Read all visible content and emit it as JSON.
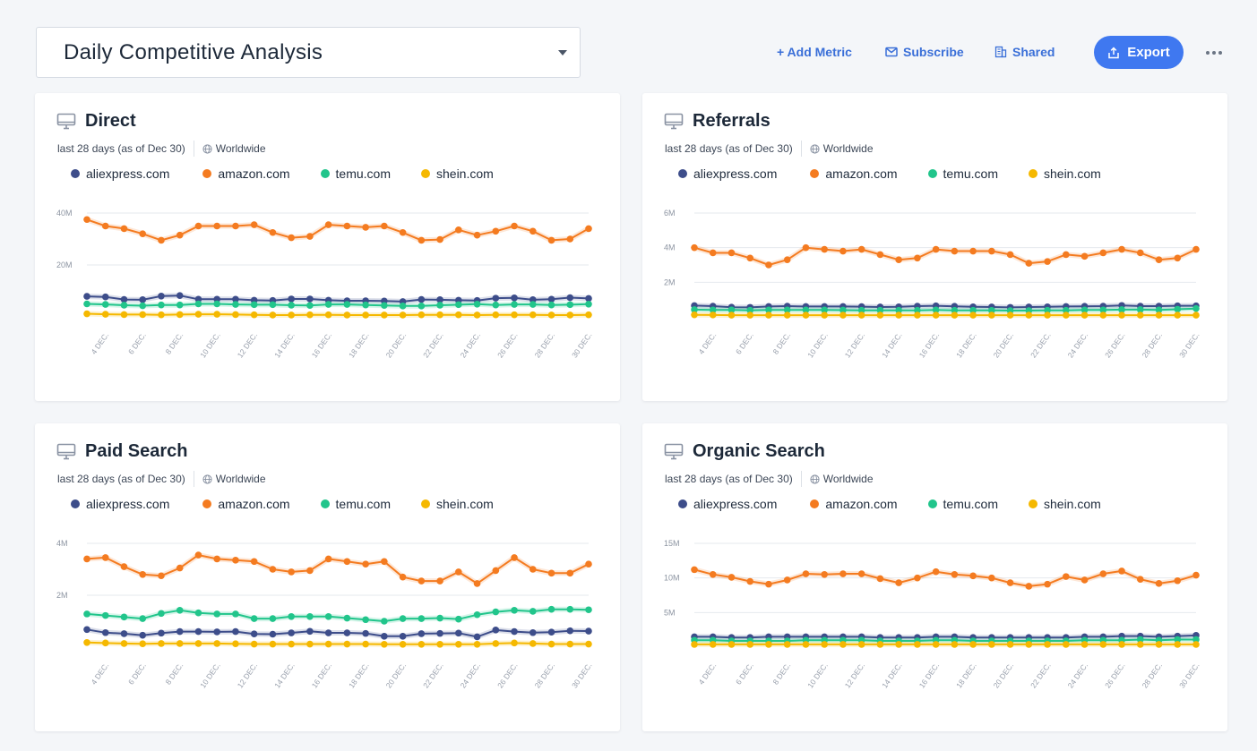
{
  "header": {
    "report_title": "Daily Competitive Analysis",
    "add_metric_label": "+ Add Metric",
    "subscribe_label": "Subscribe",
    "shared_label": "Shared",
    "export_label": "Export"
  },
  "colors": {
    "accent": "#3f78f0",
    "link": "#3a6fd8",
    "aliexpress": "#3d4d8a",
    "amazon": "#f47b20",
    "temu": "#21c58b",
    "shein": "#f5b800"
  },
  "legend": [
    "aliexpress.com",
    "amazon.com",
    "temu.com",
    "shein.com"
  ],
  "cards": [
    {
      "title": "Direct",
      "period": "last 28 days (as of Dec 30)",
      "region": "Worldwide",
      "chart_data": {
        "type": "line",
        "title": "Direct",
        "xlabel": "",
        "ylabel": "",
        "ylim": [
          0,
          40
        ],
        "y_ticks": [
          {
            "value": 20,
            "label": "20M"
          },
          {
            "value": 40,
            "label": "40M"
          }
        ],
        "x": [
          "3 DEC.",
          "4 DEC.",
          "5 DEC.",
          "6 DEC.",
          "7 DEC.",
          "8 DEC.",
          "9 DEC.",
          "10 DEC.",
          "11 DEC.",
          "12 DEC.",
          "13 DEC.",
          "14 DEC.",
          "15 DEC.",
          "16 DEC.",
          "17 DEC.",
          "18 DEC.",
          "19 DEC.",
          "20 DEC.",
          "21 DEC.",
          "22 DEC.",
          "23 DEC.",
          "24 DEC.",
          "25 DEC.",
          "26 DEC.",
          "27 DEC.",
          "28 DEC.",
          "29 DEC.",
          "30 DEC."
        ],
        "x_labels": [
          "4 DEC.",
          "6 DEC.",
          "8 DEC.",
          "10 DEC.",
          "12 DEC.",
          "14 DEC.",
          "16 DEC.",
          "18 DEC.",
          "20 DEC.",
          "22 DEC.",
          "24 DEC.",
          "26 DEC.",
          "28 DEC.",
          "30 DEC."
        ],
        "series": [
          {
            "name": "aliexpress.com",
            "values": [
              7.9,
              7.7,
              6.7,
              6.6,
              8.0,
              8.2,
              6.8,
              6.8,
              6.8,
              6.4,
              6.3,
              6.9,
              6.9,
              6.4,
              6.2,
              6.2,
              6.1,
              5.9,
              6.7,
              6.6,
              6.4,
              6.3,
              7.2,
              7.3,
              6.6,
              6.8,
              7.4,
              7.1
            ]
          },
          {
            "name": "amazon.com",
            "values": [
              37.5,
              35.0,
              34.0,
              32.0,
              29.5,
              31.5,
              35.0,
              35.0,
              35.0,
              35.5,
              32.5,
              30.5,
              31.0,
              35.5,
              35.0,
              34.5,
              35.0,
              32.5,
              29.5,
              29.8,
              33.5,
              31.5,
              33.0,
              35.0,
              33.0,
              29.5,
              30.0,
              34.0
            ]
          },
          {
            "name": "temu.com",
            "values": [
              5.0,
              4.8,
              4.5,
              4.3,
              4.6,
              4.6,
              5.0,
              5.0,
              4.8,
              4.7,
              4.7,
              4.5,
              4.4,
              4.8,
              4.8,
              4.6,
              4.4,
              4.2,
              4.2,
              4.5,
              4.7,
              4.9,
              4.6,
              4.8,
              4.8,
              4.6,
              4.7,
              4.9
            ]
          },
          {
            "name": "shein.com",
            "values": [
              1.2,
              1.0,
              0.9,
              0.9,
              0.8,
              0.9,
              1.0,
              1.0,
              0.9,
              0.8,
              0.7,
              0.7,
              0.8,
              0.8,
              0.7,
              0.7,
              0.7,
              0.7,
              0.8,
              0.8,
              0.8,
              0.7,
              0.8,
              0.8,
              0.8,
              0.7,
              0.7,
              0.8
            ]
          }
        ]
      }
    },
    {
      "title": "Referrals",
      "period": "last 28 days (as of Dec 30)",
      "region": "Worldwide",
      "chart_data": {
        "type": "line",
        "title": "Referrals",
        "xlabel": "",
        "ylabel": "",
        "ylim": [
          0,
          6
        ],
        "y_ticks": [
          {
            "value": 2,
            "label": "2M"
          },
          {
            "value": 4,
            "label": "4M"
          },
          {
            "value": 6,
            "label": "6M"
          }
        ],
        "x": [
          "3 DEC.",
          "4 DEC.",
          "5 DEC.",
          "6 DEC.",
          "7 DEC.",
          "8 DEC.",
          "9 DEC.",
          "10 DEC.",
          "11 DEC.",
          "12 DEC.",
          "13 DEC.",
          "14 DEC.",
          "15 DEC.",
          "16 DEC.",
          "17 DEC.",
          "18 DEC.",
          "19 DEC.",
          "20 DEC.",
          "21 DEC.",
          "22 DEC.",
          "23 DEC.",
          "24 DEC.",
          "25 DEC.",
          "26 DEC.",
          "27 DEC.",
          "28 DEC.",
          "29 DEC.",
          "30 DEC."
        ],
        "x_labels": [
          "4 DEC.",
          "6 DEC.",
          "8 DEC.",
          "10 DEC.",
          "12 DEC.",
          "14 DEC.",
          "16 DEC.",
          "18 DEC.",
          "20 DEC.",
          "22 DEC.",
          "24 DEC.",
          "26 DEC.",
          "28 DEC.",
          "30 DEC."
        ],
        "series": [
          {
            "name": "aliexpress.com",
            "values": [
              0.65,
              0.62,
              0.56,
              0.55,
              0.6,
              0.62,
              0.6,
              0.6,
              0.6,
              0.59,
              0.57,
              0.58,
              0.62,
              0.64,
              0.61,
              0.58,
              0.57,
              0.55,
              0.57,
              0.58,
              0.6,
              0.61,
              0.62,
              0.66,
              0.62,
              0.62,
              0.64,
              0.64
            ]
          },
          {
            "name": "amazon.com",
            "values": [
              4.0,
              3.7,
              3.7,
              3.4,
              3.0,
              3.3,
              4.0,
              3.9,
              3.8,
              3.9,
              3.6,
              3.3,
              3.4,
              3.9,
              3.8,
              3.8,
              3.8,
              3.6,
              3.1,
              3.2,
              3.6,
              3.5,
              3.7,
              3.9,
              3.7,
              3.3,
              3.4,
              3.9
            ]
          },
          {
            "name": "temu.com",
            "values": [
              0.42,
              0.4,
              0.4,
              0.38,
              0.4,
              0.4,
              0.4,
              0.4,
              0.39,
              0.38,
              0.38,
              0.38,
              0.38,
              0.4,
              0.38,
              0.38,
              0.37,
              0.36,
              0.36,
              0.38,
              0.38,
              0.4,
              0.4,
              0.42,
              0.42,
              0.4,
              0.44,
              0.48
            ]
          },
          {
            "name": "shein.com",
            "values": [
              0.12,
              0.11,
              0.1,
              0.1,
              0.1,
              0.1,
              0.1,
              0.1,
              0.1,
              0.1,
              0.1,
              0.1,
              0.1,
              0.1,
              0.1,
              0.1,
              0.1,
              0.1,
              0.1,
              0.1,
              0.1,
              0.1,
              0.1,
              0.1,
              0.1,
              0.1,
              0.1,
              0.1
            ]
          }
        ]
      }
    },
    {
      "title": "Paid Search",
      "period": "last 28 days (as of Dec 30)",
      "region": "Worldwide",
      "chart_data": {
        "type": "line",
        "title": "Paid Search",
        "xlabel": "",
        "ylabel": "",
        "ylim": [
          0,
          4
        ],
        "y_ticks": [
          {
            "value": 2,
            "label": "2M"
          },
          {
            "value": 4,
            "label": "4M"
          }
        ],
        "x": [
          "3 DEC.",
          "4 DEC.",
          "5 DEC.",
          "6 DEC.",
          "7 DEC.",
          "8 DEC.",
          "9 DEC.",
          "10 DEC.",
          "11 DEC.",
          "12 DEC.",
          "13 DEC.",
          "14 DEC.",
          "15 DEC.",
          "16 DEC.",
          "17 DEC.",
          "18 DEC.",
          "19 DEC.",
          "20 DEC.",
          "21 DEC.",
          "22 DEC.",
          "23 DEC.",
          "24 DEC.",
          "25 DEC.",
          "26 DEC.",
          "27 DEC.",
          "28 DEC.",
          "29 DEC.",
          "30 DEC."
        ],
        "x_labels": [
          "4 DEC.",
          "6 DEC.",
          "8 DEC.",
          "10 DEC.",
          "12 DEC.",
          "14 DEC.",
          "16 DEC.",
          "18 DEC.",
          "20 DEC.",
          "22 DEC.",
          "24 DEC.",
          "26 DEC.",
          "28 DEC.",
          "30 DEC."
        ],
        "series": [
          {
            "name": "aliexpress.com",
            "values": [
              0.68,
              0.56,
              0.52,
              0.46,
              0.54,
              0.6,
              0.6,
              0.59,
              0.6,
              0.51,
              0.5,
              0.55,
              0.61,
              0.55,
              0.55,
              0.53,
              0.42,
              0.42,
              0.52,
              0.53,
              0.54,
              0.4,
              0.66,
              0.6,
              0.56,
              0.58,
              0.63,
              0.62
            ]
          },
          {
            "name": "amazon.com",
            "values": [
              3.4,
              3.45,
              3.1,
              2.8,
              2.75,
              3.05,
              3.55,
              3.4,
              3.35,
              3.3,
              3.0,
              2.9,
              2.95,
              3.4,
              3.3,
              3.2,
              3.3,
              2.7,
              2.55,
              2.55,
              2.9,
              2.45,
              2.95,
              3.45,
              3.0,
              2.85,
              2.85,
              3.2
            ]
          },
          {
            "name": "temu.com",
            "values": [
              1.28,
              1.22,
              1.16,
              1.1,
              1.3,
              1.42,
              1.32,
              1.28,
              1.28,
              1.1,
              1.1,
              1.18,
              1.18,
              1.18,
              1.12,
              1.06,
              1.0,
              1.1,
              1.1,
              1.12,
              1.08,
              1.25,
              1.36,
              1.42,
              1.38,
              1.46,
              1.46,
              1.44
            ]
          },
          {
            "name": "shein.com",
            "values": [
              0.18,
              0.16,
              0.14,
              0.13,
              0.14,
              0.14,
              0.14,
              0.14,
              0.13,
              0.12,
              0.12,
              0.12,
              0.12,
              0.12,
              0.12,
              0.12,
              0.11,
              0.11,
              0.11,
              0.11,
              0.11,
              0.11,
              0.14,
              0.16,
              0.14,
              0.12,
              0.12,
              0.12
            ]
          }
        ]
      }
    },
    {
      "title": "Organic Search",
      "period": "last 28 days (as of Dec 30)",
      "region": "Worldwide",
      "chart_data": {
        "type": "line",
        "title": "Organic Search",
        "xlabel": "",
        "ylabel": "",
        "ylim": [
          0,
          15
        ],
        "y_ticks": [
          {
            "value": 5,
            "label": "5M"
          },
          {
            "value": 10,
            "label": "10M"
          },
          {
            "value": 15,
            "label": "15M"
          }
        ],
        "x": [
          "3 DEC.",
          "4 DEC.",
          "5 DEC.",
          "6 DEC.",
          "7 DEC.",
          "8 DEC.",
          "9 DEC.",
          "10 DEC.",
          "11 DEC.",
          "12 DEC.",
          "13 DEC.",
          "14 DEC.",
          "15 DEC.",
          "16 DEC.",
          "17 DEC.",
          "18 DEC.",
          "19 DEC.",
          "20 DEC.",
          "21 DEC.",
          "22 DEC.",
          "23 DEC.",
          "24 DEC.",
          "25 DEC.",
          "26 DEC.",
          "27 DEC.",
          "28 DEC.",
          "29 DEC.",
          "30 DEC."
        ],
        "x_labels": [
          "4 DEC.",
          "6 DEC.",
          "8 DEC.",
          "10 DEC.",
          "12 DEC.",
          "14 DEC.",
          "16 DEC.",
          "18 DEC.",
          "20 DEC.",
          "22 DEC.",
          "24 DEC.",
          "26 DEC.",
          "28 DEC.",
          "30 DEC."
        ],
        "series": [
          {
            "name": "aliexpress.com",
            "values": [
              1.5,
              1.5,
              1.4,
              1.4,
              1.5,
              1.5,
              1.5,
              1.5,
              1.5,
              1.5,
              1.4,
              1.4,
              1.4,
              1.5,
              1.5,
              1.4,
              1.4,
              1.4,
              1.4,
              1.4,
              1.4,
              1.5,
              1.5,
              1.6,
              1.6,
              1.5,
              1.6,
              1.7
            ]
          },
          {
            "name": "amazon.com",
            "values": [
              11.2,
              10.5,
              10.1,
              9.5,
              9.1,
              9.7,
              10.6,
              10.5,
              10.6,
              10.6,
              9.9,
              9.3,
              10.0,
              10.9,
              10.5,
              10.3,
              10.0,
              9.3,
              8.8,
              9.1,
              10.2,
              9.7,
              10.6,
              11.0,
              9.8,
              9.2,
              9.6,
              10.4
            ]
          },
          {
            "name": "temu.com",
            "values": [
              1.0,
              1.0,
              0.9,
              0.9,
              0.9,
              0.9,
              1.0,
              1.0,
              1.0,
              1.0,
              0.9,
              0.9,
              0.9,
              1.0,
              1.0,
              0.9,
              0.9,
              0.9,
              0.9,
              0.9,
              0.9,
              1.0,
              1.0,
              1.0,
              1.1,
              1.0,
              1.1,
              1.1
            ]
          },
          {
            "name": "shein.com",
            "values": [
              0.4,
              0.4,
              0.4,
              0.4,
              0.4,
              0.4,
              0.4,
              0.4,
              0.4,
              0.4,
              0.4,
              0.4,
              0.4,
              0.4,
              0.4,
              0.4,
              0.4,
              0.4,
              0.4,
              0.4,
              0.4,
              0.4,
              0.4,
              0.4,
              0.4,
              0.4,
              0.4,
              0.4
            ]
          }
        ]
      }
    }
  ]
}
